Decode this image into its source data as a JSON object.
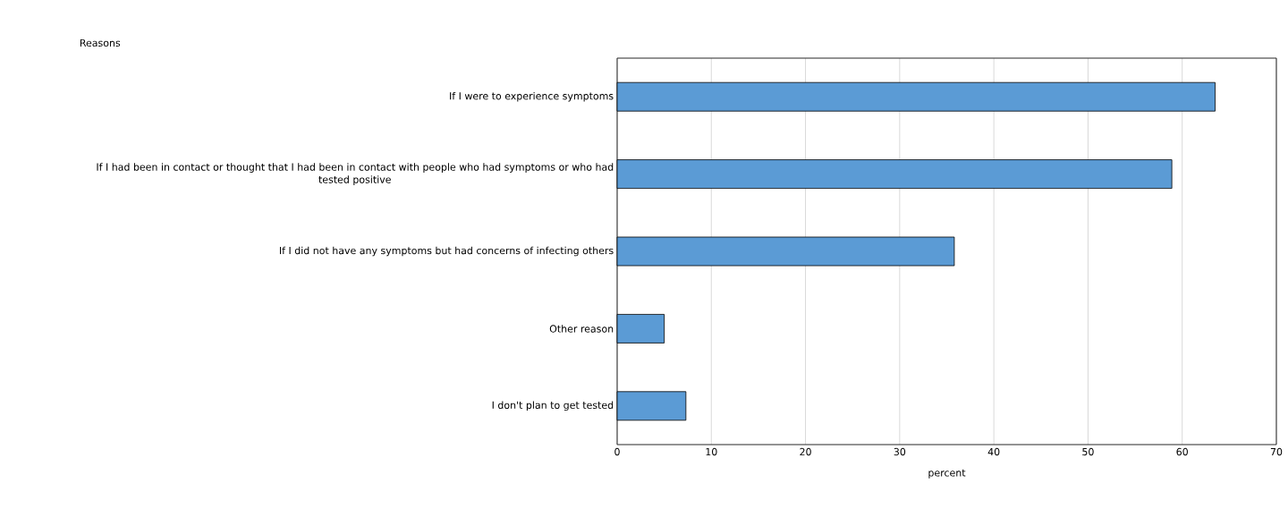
{
  "chart_data": {
    "type": "bar",
    "orientation": "horizontal",
    "ylabel": "Reasons",
    "xlabel": "percent",
    "categories": [
      "If I were to experience symptoms",
      "If I had been in contact or thought that I had been in contact with people who had symptoms or who had tested positive",
      "If I did not have any symptoms but had concerns of infecting others",
      "Other reason",
      "I don't plan to get tested"
    ],
    "values": [
      63.5,
      58.9,
      35.8,
      5.0,
      7.3
    ],
    "color": "#5b9bd5",
    "xlim": [
      0,
      70
    ],
    "xticks": [
      0,
      10,
      20,
      30,
      40,
      50,
      60,
      70
    ],
    "grid": "x"
  }
}
